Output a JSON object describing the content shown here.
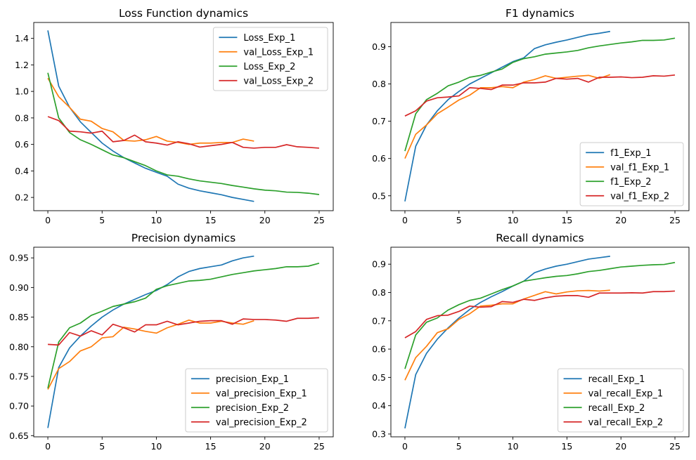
{
  "colors": {
    "c1": "#1f77b4",
    "c2": "#ff7f0e",
    "c3": "#2ca02c",
    "c4": "#d62728"
  },
  "chart_data": [
    {
      "type": "line",
      "title": "Loss Function dynamics",
      "xlabel": "",
      "ylabel": "",
      "xlim": [
        -1.3,
        26.3
      ],
      "ylim": [
        0.1,
        1.52
      ],
      "xticks": [
        0,
        5,
        10,
        15,
        20,
        25
      ],
      "yticks": [
        0.2,
        0.4,
        0.6,
        0.8,
        1.0,
        1.2,
        1.4
      ],
      "ytick_labels": [
        "0.2",
        "0.4",
        "0.6",
        "0.8",
        "1.0",
        "1.2",
        "1.4"
      ],
      "legend_position": "upper-right",
      "series": [
        {
          "name": "Loss_Exp_1",
          "color": "#1f77b4",
          "x": [
            0,
            1,
            2,
            3,
            4,
            5,
            6,
            7,
            8,
            9,
            10,
            11,
            12,
            13,
            14,
            15,
            16,
            17,
            18,
            19
          ],
          "values": [
            1.46,
            1.04,
            0.88,
            0.77,
            0.69,
            0.61,
            0.55,
            0.5,
            0.46,
            0.42,
            0.39,
            0.36,
            0.3,
            0.27,
            0.25,
            0.235,
            0.22,
            0.2,
            0.185,
            0.17
          ]
        },
        {
          "name": "val_Loss_Exp_1",
          "color": "#ff7f0e",
          "x": [
            0,
            1,
            2,
            3,
            4,
            5,
            6,
            7,
            8,
            9,
            10,
            11,
            12,
            13,
            14,
            15,
            16,
            17,
            18,
            19
          ],
          "values": [
            1.1,
            0.96,
            0.88,
            0.79,
            0.775,
            0.72,
            0.695,
            0.63,
            0.625,
            0.635,
            0.66,
            0.625,
            0.615,
            0.6,
            0.61,
            0.61,
            0.615,
            0.615,
            0.64,
            0.625
          ]
        },
        {
          "name": "Loss_Exp_2",
          "color": "#2ca02c",
          "x": [
            0,
            1,
            2,
            3,
            4,
            5,
            6,
            7,
            8,
            9,
            10,
            11,
            12,
            13,
            14,
            15,
            16,
            17,
            18,
            19,
            20,
            21,
            22,
            23,
            24,
            25
          ],
          "values": [
            1.14,
            0.8,
            0.69,
            0.635,
            0.6,
            0.56,
            0.52,
            0.5,
            0.47,
            0.44,
            0.4,
            0.37,
            0.36,
            0.34,
            0.325,
            0.315,
            0.305,
            0.29,
            0.278,
            0.265,
            0.255,
            0.25,
            0.24,
            0.238,
            0.232,
            0.222
          ]
        },
        {
          "name": "val_Loss_Exp_2",
          "color": "#d62728",
          "x": [
            0,
            1,
            2,
            3,
            4,
            5,
            6,
            7,
            8,
            9,
            10,
            11,
            12,
            13,
            14,
            15,
            16,
            17,
            18,
            19,
            20,
            21,
            22,
            23,
            24,
            25
          ],
          "values": [
            0.81,
            0.78,
            0.7,
            0.695,
            0.685,
            0.7,
            0.62,
            0.63,
            0.67,
            0.62,
            0.61,
            0.595,
            0.62,
            0.605,
            0.58,
            0.59,
            0.6,
            0.615,
            0.578,
            0.572,
            0.578,
            0.578,
            0.598,
            0.582,
            0.578,
            0.572
          ]
        }
      ]
    },
    {
      "type": "line",
      "title": "F1 dynamics",
      "xlabel": "",
      "ylabel": "",
      "xlim": [
        -1.3,
        26.3
      ],
      "ylim": [
        0.46,
        0.965
      ],
      "xticks": [
        0,
        5,
        10,
        15,
        20,
        25
      ],
      "yticks": [
        0.5,
        0.6,
        0.7,
        0.8,
        0.9
      ],
      "ytick_labels": [
        "0.5",
        "0.6",
        "0.7",
        "0.8",
        "0.9"
      ],
      "legend_position": "lower-right",
      "series": [
        {
          "name": "f1_Exp_1",
          "color": "#1f77b4",
          "x": [
            0,
            1,
            2,
            3,
            4,
            5,
            6,
            7,
            8,
            9,
            10,
            11,
            12,
            13,
            14,
            15,
            16,
            17,
            18,
            19
          ],
          "values": [
            0.485,
            0.633,
            0.69,
            0.728,
            0.758,
            0.78,
            0.8,
            0.815,
            0.83,
            0.845,
            0.86,
            0.87,
            0.895,
            0.905,
            0.912,
            0.918,
            0.925,
            0.932,
            0.936,
            0.941
          ]
        },
        {
          "name": "val_f1_Exp_1",
          "color": "#ff7f0e",
          "x": [
            0,
            1,
            2,
            3,
            4,
            5,
            6,
            7,
            8,
            9,
            10,
            11,
            12,
            13,
            14,
            15,
            16,
            17,
            18,
            19
          ],
          "values": [
            0.6,
            0.665,
            0.69,
            0.72,
            0.738,
            0.757,
            0.77,
            0.79,
            0.79,
            0.793,
            0.79,
            0.805,
            0.812,
            0.822,
            0.815,
            0.818,
            0.821,
            0.823,
            0.815,
            0.825
          ]
        },
        {
          "name": "f1_Exp_2",
          "color": "#2ca02c",
          "x": [
            0,
            1,
            2,
            3,
            4,
            5,
            6,
            7,
            8,
            9,
            10,
            11,
            12,
            13,
            14,
            15,
            16,
            17,
            18,
            19,
            20,
            21,
            22,
            23,
            24,
            25
          ],
          "values": [
            0.62,
            0.72,
            0.758,
            0.775,
            0.795,
            0.805,
            0.818,
            0.823,
            0.832,
            0.84,
            0.858,
            0.868,
            0.873,
            0.88,
            0.883,
            0.886,
            0.89,
            0.897,
            0.902,
            0.906,
            0.91,
            0.913,
            0.917,
            0.917,
            0.918,
            0.923
          ]
        },
        {
          "name": "val_f1_Exp_2",
          "color": "#d62728",
          "x": [
            0,
            1,
            2,
            3,
            4,
            5,
            6,
            7,
            8,
            9,
            10,
            11,
            12,
            13,
            14,
            15,
            16,
            17,
            18,
            19,
            20,
            21,
            22,
            23,
            24,
            25
          ],
          "values": [
            0.714,
            0.728,
            0.754,
            0.763,
            0.765,
            0.768,
            0.79,
            0.788,
            0.785,
            0.797,
            0.797,
            0.803,
            0.803,
            0.805,
            0.815,
            0.813,
            0.815,
            0.805,
            0.818,
            0.818,
            0.819,
            0.817,
            0.818,
            0.822,
            0.821,
            0.824
          ]
        }
      ]
    },
    {
      "type": "line",
      "title": "Precision dynamics",
      "xlabel": "",
      "ylabel": "",
      "xlim": [
        -1.3,
        26.3
      ],
      "ylim": [
        0.648,
        0.968
      ],
      "xticks": [
        0,
        5,
        10,
        15,
        20,
        25
      ],
      "yticks": [
        0.65,
        0.7,
        0.75,
        0.8,
        0.85,
        0.9,
        0.95
      ],
      "ytick_labels": [
        "0.65",
        "0.70",
        "0.75",
        "0.80",
        "0.85",
        "0.90",
        "0.95"
      ],
      "legend_position": "lower-right",
      "series": [
        {
          "name": "precision_Exp_1",
          "color": "#1f77b4",
          "x": [
            0,
            1,
            2,
            3,
            4,
            5,
            6,
            7,
            8,
            9,
            10,
            11,
            12,
            13,
            14,
            15,
            16,
            17,
            18,
            19
          ],
          "values": [
            0.663,
            0.765,
            0.798,
            0.818,
            0.835,
            0.85,
            0.862,
            0.872,
            0.88,
            0.888,
            0.895,
            0.905,
            0.918,
            0.927,
            0.932,
            0.935,
            0.938,
            0.945,
            0.95,
            0.953
          ]
        },
        {
          "name": "val_precision_Exp_1",
          "color": "#ff7f0e",
          "x": [
            0,
            1,
            2,
            3,
            4,
            5,
            6,
            7,
            8,
            9,
            10,
            11,
            12,
            13,
            14,
            15,
            16,
            17,
            18,
            19
          ],
          "values": [
            0.728,
            0.763,
            0.775,
            0.793,
            0.8,
            0.815,
            0.817,
            0.833,
            0.83,
            0.826,
            0.823,
            0.832,
            0.838,
            0.845,
            0.84,
            0.84,
            0.843,
            0.84,
            0.838,
            0.844
          ]
        },
        {
          "name": "precision_Exp_2",
          "color": "#2ca02c",
          "x": [
            0,
            1,
            2,
            3,
            4,
            5,
            6,
            7,
            8,
            9,
            10,
            11,
            12,
            13,
            14,
            15,
            16,
            17,
            18,
            19,
            20,
            21,
            22,
            23,
            24,
            25
          ],
          "values": [
            0.73,
            0.808,
            0.832,
            0.84,
            0.853,
            0.86,
            0.868,
            0.872,
            0.876,
            0.882,
            0.897,
            0.903,
            0.907,
            0.911,
            0.912,
            0.914,
            0.918,
            0.922,
            0.925,
            0.928,
            0.93,
            0.932,
            0.935,
            0.935,
            0.936,
            0.941
          ]
        },
        {
          "name": "val_precision_Exp_2",
          "color": "#d62728",
          "x": [
            0,
            1,
            2,
            3,
            4,
            5,
            6,
            7,
            8,
            9,
            10,
            11,
            12,
            13,
            14,
            15,
            16,
            17,
            18,
            19,
            20,
            21,
            22,
            23,
            24,
            25
          ],
          "values": [
            0.804,
            0.803,
            0.824,
            0.818,
            0.827,
            0.82,
            0.838,
            0.832,
            0.825,
            0.837,
            0.837,
            0.843,
            0.837,
            0.84,
            0.843,
            0.844,
            0.844,
            0.838,
            0.847,
            0.846,
            0.846,
            0.845,
            0.843,
            0.848,
            0.848,
            0.849
          ]
        }
      ]
    },
    {
      "type": "line",
      "title": "Recall dynamics",
      "xlabel": "",
      "ylabel": "",
      "xlim": [
        -1.3,
        26.3
      ],
      "ylim": [
        0.29,
        0.96
      ],
      "xticks": [
        0,
        5,
        10,
        15,
        20,
        25
      ],
      "yticks": [
        0.3,
        0.4,
        0.5,
        0.6,
        0.7,
        0.8,
        0.9
      ],
      "ytick_labels": [
        "0.3",
        "0.4",
        "0.5",
        "0.6",
        "0.7",
        "0.8",
        "0.9"
      ],
      "legend_position": "lower-right",
      "series": [
        {
          "name": "recall_Exp_1",
          "color": "#1f77b4",
          "x": [
            0,
            1,
            2,
            3,
            4,
            5,
            6,
            7,
            8,
            9,
            10,
            11,
            12,
            13,
            14,
            15,
            16,
            17,
            18,
            19
          ],
          "values": [
            0.32,
            0.51,
            0.585,
            0.635,
            0.675,
            0.71,
            0.74,
            0.765,
            0.785,
            0.803,
            0.823,
            0.84,
            0.87,
            0.883,
            0.893,
            0.9,
            0.909,
            0.918,
            0.923,
            0.928
          ]
        },
        {
          "name": "val_recall_Exp_1",
          "color": "#ff7f0e",
          "x": [
            0,
            1,
            2,
            3,
            4,
            5,
            6,
            7,
            8,
            9,
            10,
            11,
            12,
            13,
            14,
            15,
            16,
            17,
            18,
            19
          ],
          "values": [
            0.49,
            0.57,
            0.61,
            0.658,
            0.672,
            0.705,
            0.725,
            0.752,
            0.755,
            0.76,
            0.76,
            0.777,
            0.79,
            0.803,
            0.795,
            0.802,
            0.806,
            0.807,
            0.805,
            0.808
          ]
        },
        {
          "name": "recall_Exp_2",
          "color": "#2ca02c",
          "x": [
            0,
            1,
            2,
            3,
            4,
            5,
            6,
            7,
            8,
            9,
            10,
            11,
            12,
            13,
            14,
            15,
            16,
            17,
            18,
            19,
            20,
            21,
            22,
            23,
            24,
            25
          ],
          "values": [
            0.53,
            0.65,
            0.695,
            0.71,
            0.738,
            0.757,
            0.772,
            0.78,
            0.795,
            0.81,
            0.823,
            0.84,
            0.846,
            0.852,
            0.857,
            0.86,
            0.866,
            0.874,
            0.878,
            0.884,
            0.89,
            0.893,
            0.896,
            0.898,
            0.899,
            0.906
          ]
        },
        {
          "name": "val_recall_Exp_2",
          "color": "#d62728",
          "x": [
            0,
            1,
            2,
            3,
            4,
            5,
            6,
            7,
            8,
            9,
            10,
            11,
            12,
            13,
            14,
            15,
            16,
            17,
            18,
            19,
            20,
            21,
            22,
            23,
            24,
            25
          ],
          "values": [
            0.64,
            0.662,
            0.705,
            0.718,
            0.72,
            0.733,
            0.752,
            0.748,
            0.75,
            0.768,
            0.765,
            0.776,
            0.772,
            0.781,
            0.787,
            0.789,
            0.789,
            0.783,
            0.798,
            0.798,
            0.798,
            0.799,
            0.798,
            0.803,
            0.803,
            0.805
          ]
        }
      ]
    }
  ]
}
